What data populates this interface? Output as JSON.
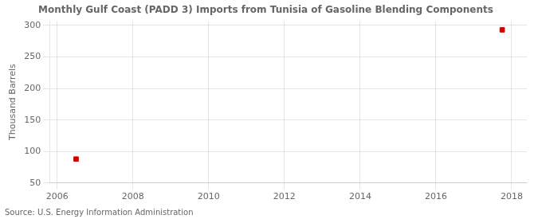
{
  "chart_data": {
    "type": "scatter",
    "title": "Monthly Gulf Coast (PADD 3) Imports from Tunisia of Gasoline Blending Components",
    "ylabel": "Thousand Barrels",
    "source": "Source: U.S. Energy Information Administration",
    "x": [
      2006.5,
      2017.75
    ],
    "values": [
      88,
      293
    ],
    "color": "#cc0000",
    "marker": "square",
    "xlim": [
      2005.8,
      2018.4
    ],
    "xticks": [
      2006,
      2008,
      2010,
      2012,
      2014,
      2016,
      2018
    ],
    "ylim": [
      50,
      307
    ],
    "yticks": [
      50,
      100,
      150,
      200,
      250,
      300
    ],
    "grid": true
  }
}
